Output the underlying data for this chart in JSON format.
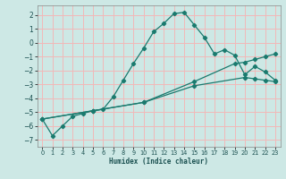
{
  "xlabel": "Humidex (Indice chaleur)",
  "bg_color": "#cde8e5",
  "grid_color": "#f2b8b8",
  "line_color": "#1a7a6e",
  "xlim": [
    -0.5,
    23.5
  ],
  "ylim": [
    -7.5,
    2.7
  ],
  "yticks": [
    2,
    1,
    0,
    -1,
    -2,
    -3,
    -4,
    -5,
    -6,
    -7
  ],
  "xticks": [
    0,
    1,
    2,
    3,
    4,
    5,
    6,
    7,
    8,
    9,
    10,
    11,
    12,
    13,
    14,
    15,
    16,
    17,
    18,
    19,
    20,
    21,
    22,
    23
  ],
  "series1_x": [
    0,
    1,
    2,
    3,
    4,
    5,
    6,
    7,
    8,
    9,
    10,
    11,
    12,
    13,
    14,
    15,
    16,
    17,
    18,
    19,
    20,
    21,
    22,
    23
  ],
  "series1_y": [
    -5.5,
    -6.7,
    -6.0,
    -5.3,
    -5.1,
    -4.9,
    -4.8,
    -3.9,
    -2.7,
    -1.5,
    -0.4,
    0.8,
    1.4,
    2.1,
    2.2,
    1.3,
    0.4,
    -0.8,
    -0.5,
    -0.9,
    -2.3,
    -1.7,
    -2.1,
    -2.7
  ],
  "series2_x": [
    0,
    5,
    10,
    15,
    19,
    20,
    21,
    22,
    23
  ],
  "series2_y": [
    -5.5,
    -4.9,
    -4.3,
    -2.8,
    -1.5,
    -1.4,
    -1.2,
    -1.0,
    -0.8
  ],
  "series3_x": [
    0,
    5,
    10,
    15,
    20,
    21,
    22,
    23
  ],
  "series3_y": [
    -5.5,
    -4.9,
    -4.3,
    -3.1,
    -2.5,
    -2.6,
    -2.7,
    -2.8
  ]
}
